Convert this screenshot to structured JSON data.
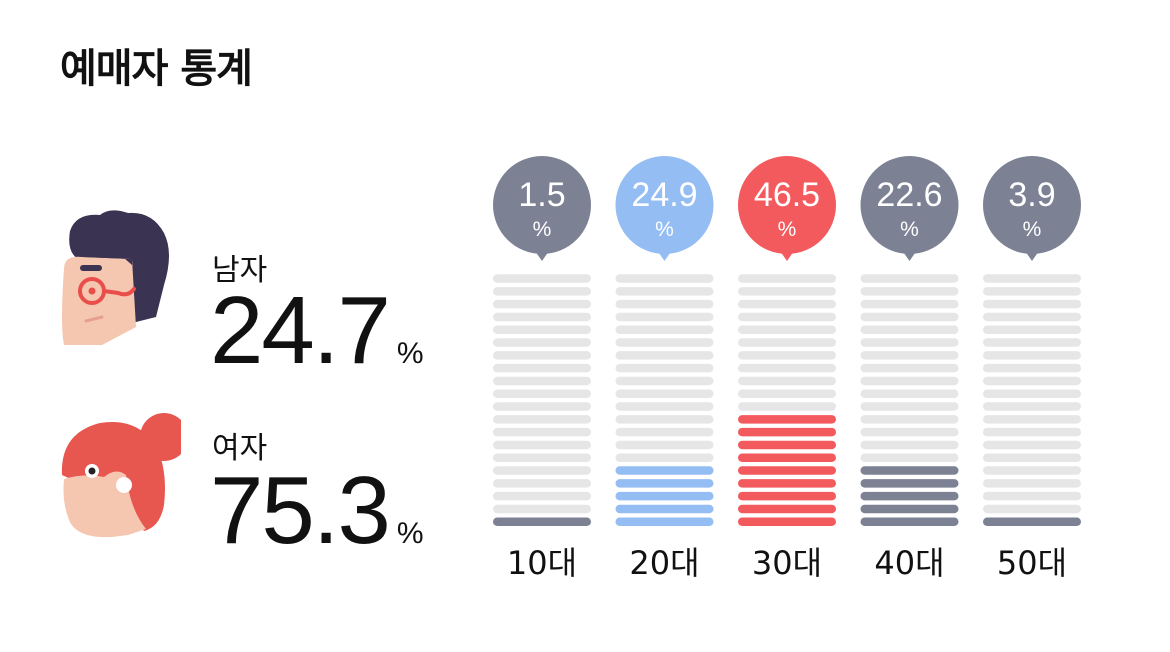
{
  "title": "예매자 통계",
  "gender": {
    "male": {
      "label": "남자",
      "value": "24.7",
      "unit": "%"
    },
    "female": {
      "label": "여자",
      "value": "75.3",
      "unit": "%"
    }
  },
  "colors": {
    "empty": "#e6e6e6",
    "gray": "#7d8194",
    "blue": "#94bdf3",
    "red": "#f25a5e"
  },
  "chart_data": {
    "type": "bar",
    "categories": [
      "10대",
      "20대",
      "30대",
      "40대",
      "50대"
    ],
    "values": [
      1.5,
      24.9,
      46.5,
      22.6,
      3.9
    ],
    "unit": "%",
    "ylim": [
      0,
      100
    ],
    "bar_colors": [
      "#7d8194",
      "#94bdf3",
      "#f25a5e",
      "#7d8194",
      "#7d8194"
    ],
    "title": "",
    "xlabel": "",
    "ylabel": ""
  }
}
